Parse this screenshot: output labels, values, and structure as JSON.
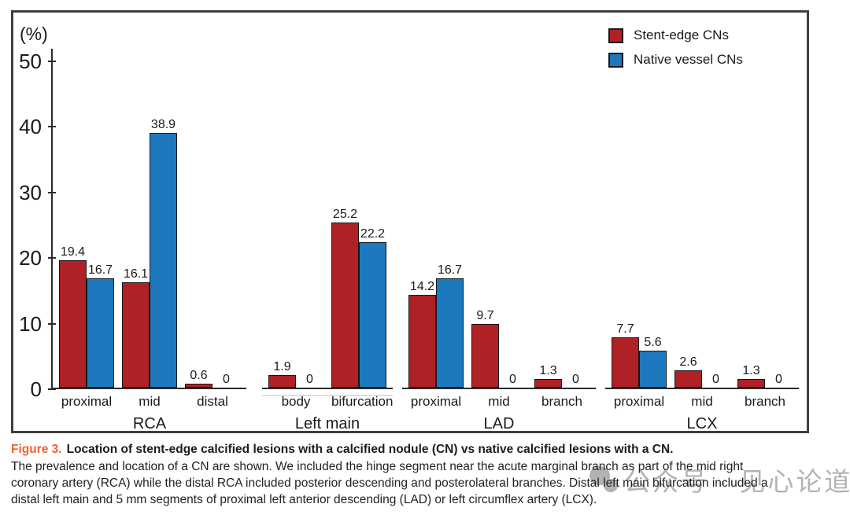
{
  "chart_data": {
    "type": "bar",
    "ylabel": "(%)",
    "ylim": [
      0,
      50
    ],
    "yticks": [
      0,
      10,
      20,
      30,
      40,
      50
    ],
    "grid": false,
    "legend_position": "top-right",
    "legend": [
      {
        "name": "Stent-edge CNs",
        "color": "#b02126"
      },
      {
        "name": "Native vessel CNs",
        "color": "#1e78be"
      }
    ],
    "groups": [
      {
        "name": "RCA",
        "categories": [
          "proximal",
          "mid",
          "distal"
        ],
        "underline": false,
        "series": [
          {
            "name": "Stent-edge CNs",
            "values": [
              19.4,
              16.1,
              0.6
            ]
          },
          {
            "name": "Native vessel CNs",
            "values": [
              16.7,
              38.9,
              0
            ]
          }
        ]
      },
      {
        "name": "Left main",
        "categories": [
          "body",
          "bifurcation"
        ],
        "underline": true,
        "series": [
          {
            "name": "Stent-edge CNs",
            "values": [
              1.9,
              25.2
            ]
          },
          {
            "name": "Native vessel CNs",
            "values": [
              0,
              22.2
            ]
          }
        ]
      },
      {
        "name": "LAD",
        "categories": [
          "proximal",
          "mid",
          "branch"
        ],
        "underline": false,
        "series": [
          {
            "name": "Stent-edge CNs",
            "values": [
              14.2,
              9.7,
              1.3
            ]
          },
          {
            "name": "Native vessel CNs",
            "values": [
              16.7,
              0,
              0
            ]
          }
        ]
      },
      {
        "name": "LCX",
        "categories": [
          "proximal",
          "mid",
          "branch"
        ],
        "underline": false,
        "series": [
          {
            "name": "Stent-edge CNs",
            "values": [
              7.7,
              2.6,
              1.3
            ]
          },
          {
            "name": "Native vessel CNs",
            "values": [
              5.6,
              0,
              0
            ]
          }
        ]
      }
    ]
  },
  "colors": {
    "stent_edge": "#b02126",
    "native_vessel": "#1e78be",
    "bar_border": "#161616",
    "axis": "#2b2b2b",
    "figure_label": "#f1602f",
    "watermark": "#b3b3b3"
  },
  "caption": {
    "figure_label": "Figure 3.",
    "title": "Location of stent-edge calcified lesions with a calcified nodule (CN) vs native calcified lesions with a CN.",
    "body": "The prevalence and location of a CN are shown. We included the hinge segment near the acute marginal branch as part of the mid right\ncoronary artery (RCA) while the distal RCA included posterior descending and posterolateral branches. Distal left main bifurcation included a\ndistal left main and 5 mm segments of proximal left anterior descending (LAD) or left circumflex artery (LCX)."
  },
  "watermark": {
    "text": "公众号 · 见心论道"
  }
}
